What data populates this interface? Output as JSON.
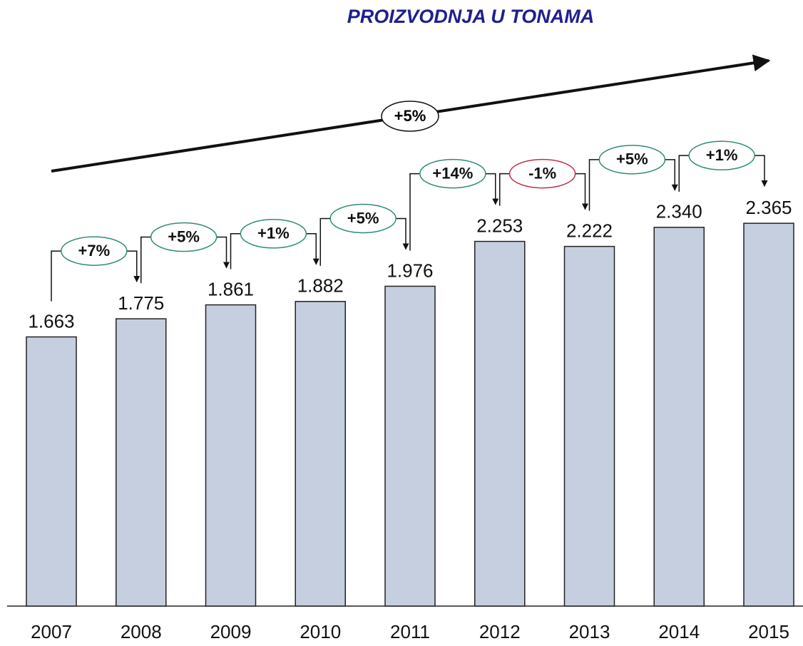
{
  "chart_data": {
    "type": "bar",
    "title": "PROIZVODNJA U TONAMA",
    "categories": [
      "2007",
      "2008",
      "2009",
      "2010",
      "2011",
      "2012",
      "2013",
      "2014",
      "2015"
    ],
    "values": [
      1663,
      1775,
      1861,
      1882,
      1976,
      2253,
      2222,
      2340,
      2365
    ],
    "value_labels": [
      "1.663",
      "1.775",
      "1.861",
      "1.882",
      "1.976",
      "2.253",
      "2.222",
      "2.340",
      "2.365"
    ],
    "color": "#c5cfe0",
    "ylim": [
      0,
      3000
    ],
    "growth_labels": [
      "+7%",
      "+5%",
      "+1%",
      "+5%",
      "+14%",
      "-1%",
      "+5%",
      "+1%"
    ],
    "growth_colors": [
      "#2e8b7a",
      "#2e8b7a",
      "#2e8b7a",
      "#2e8b7a",
      "#2e8b7a",
      "#c0304a",
      "#2e8b7a",
      "#2e8b7a"
    ],
    "trend_label": "+5%"
  }
}
